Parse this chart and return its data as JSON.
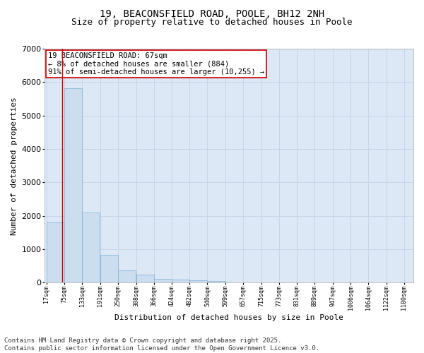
{
  "title_line1": "19, BEACONSFIELD ROAD, POOLE, BH12 2NH",
  "title_line2": "Size of property relative to detached houses in Poole",
  "xlabel": "Distribution of detached houses by size in Poole",
  "ylabel": "Number of detached properties",
  "bar_color": "#ccddf0",
  "bar_edge_color": "#7aafd4",
  "bar_left_edges": [
    17,
    75,
    133,
    191,
    250,
    308,
    366,
    424,
    482,
    540,
    599,
    657,
    715,
    773,
    831,
    889,
    947,
    1006,
    1064,
    1122
  ],
  "bar_widths": [
    58,
    58,
    58,
    59,
    58,
    58,
    58,
    58,
    58,
    59,
    58,
    58,
    58,
    58,
    58,
    58,
    59,
    58,
    58,
    58
  ],
  "bar_heights": [
    1800,
    5810,
    2090,
    820,
    360,
    230,
    110,
    80,
    60,
    40,
    15,
    10,
    5,
    0,
    0,
    0,
    0,
    0,
    0,
    0
  ],
  "tick_labels": [
    "17sqm",
    "75sqm",
    "133sqm",
    "191sqm",
    "250sqm",
    "308sqm",
    "366sqm",
    "424sqm",
    "482sqm",
    "540sqm",
    "599sqm",
    "657sqm",
    "715sqm",
    "773sqm",
    "831sqm",
    "889sqm",
    "947sqm",
    "1006sqm",
    "1064sqm",
    "1122sqm",
    "1180sqm"
  ],
  "tick_positions": [
    17,
    75,
    133,
    191,
    250,
    308,
    366,
    424,
    482,
    540,
    599,
    657,
    715,
    773,
    831,
    889,
    947,
    1006,
    1064,
    1122,
    1180
  ],
  "ylim": [
    0,
    7000
  ],
  "xlim": [
    10,
    1210
  ],
  "property_x": 67,
  "vline_color": "#cc0000",
  "annotation_text": "19 BEACONSFIELD ROAD: 67sqm\n← 8% of detached houses are smaller (884)\n91% of semi-detached houses are larger (10,255) →",
  "annotation_box_color": "#ffffff",
  "annotation_box_edgecolor": "#cc0000",
  "grid_color": "#c8d4e8",
  "background_color": "#dce8f5",
  "footer_line1": "Contains HM Land Registry data © Crown copyright and database right 2025.",
  "footer_line2": "Contains public sector information licensed under the Open Government Licence v3.0.",
  "title_fontsize": 10,
  "subtitle_fontsize": 9,
  "ylabel_fontsize": 8,
  "xlabel_fontsize": 8,
  "tick_fontsize": 6,
  "annotation_fontsize": 7.5,
  "footer_fontsize": 6.5,
  "ytick_fontsize": 8
}
